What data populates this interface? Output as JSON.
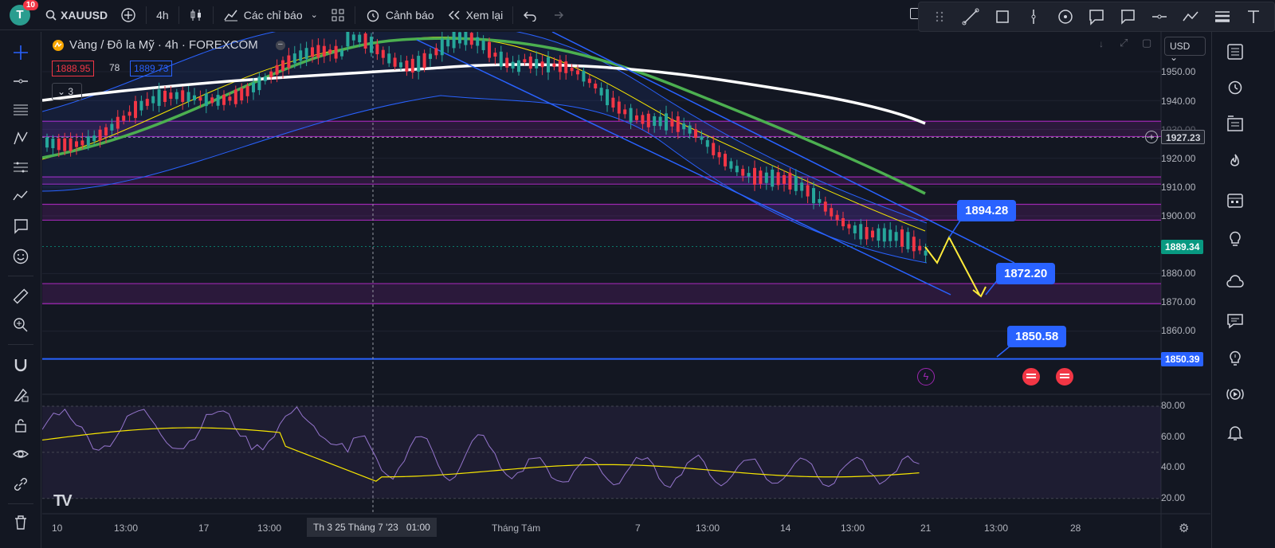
{
  "app": {
    "avatar_letter": "T",
    "notif_count": "10",
    "symbol": "XAUUSD",
    "interval": "4h",
    "indicators_label": "Các chỉ báo",
    "alert_label": "Cảnh báo",
    "replay_label": "Xem lại"
  },
  "legend": {
    "title": "Vàng / Đô la Mỹ · 4h · FOREXCOM",
    "bid": "1888.95",
    "spread": "78",
    "ask": "1889.73",
    "collapsed_count": "3",
    "currency": "USD"
  },
  "price_axis": {
    "ticks": [
      "1950.00",
      "1940.00",
      "1930.00",
      "1920.00",
      "1910.00",
      "1900.00",
      "1880.00",
      "1870.00",
      "1860.00"
    ],
    "crosshair_price": "1927.23",
    "last_price": "1889.34",
    "level_price": "1850.39",
    "rsi_ticks": [
      "80.00",
      "60.00",
      "40.00",
      "20.00"
    ]
  },
  "callouts": {
    "target1": "1894.28",
    "target2": "1872.20",
    "target3": "1850.58"
  },
  "time_axis": {
    "labels": [
      "10",
      "13:00",
      "17",
      "13:00",
      "Tháng Tám",
      "7",
      "13:00",
      "14",
      "13:00",
      "21",
      "13:00",
      "28"
    ],
    "crosshair_label": "Th 3 25 Tháng 7 '23   01:00"
  },
  "colors": {
    "bull": "#26a69a",
    "bear": "#f23645",
    "accent": "#2962ff",
    "zone": "#9c27b0",
    "ema_green": "#4caf50",
    "path_yellow": "#ffeb3b",
    "rsi": "#9575cd"
  }
}
